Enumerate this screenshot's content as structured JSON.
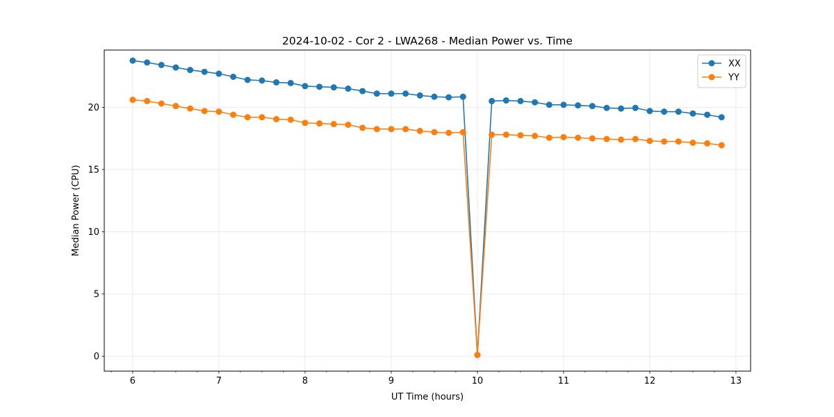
{
  "chart_data": {
    "type": "line",
    "title": "2024-10-02 - Cor 2 - LWA268 - Median Power vs. Time",
    "xlabel": "UT Time (hours)",
    "ylabel": "Median Power (CPU)",
    "xlim": [
      5.67,
      13.17
    ],
    "ylim": [
      -1.2,
      24.6
    ],
    "xticks": [
      6,
      7,
      8,
      9,
      10,
      11,
      12,
      13
    ],
    "xtick_labels": [
      "6",
      "7",
      "8",
      "9",
      "10",
      "11",
      "12",
      "13"
    ],
    "xminor_step": 0.25,
    "yticks": [
      0,
      5,
      10,
      15,
      20
    ],
    "ytick_labels": [
      "0",
      "5",
      "10",
      "15",
      "20"
    ],
    "grid": true,
    "legend_position": "top-right",
    "x": [
      6.0,
      6.1667,
      6.3333,
      6.5,
      6.6667,
      6.8333,
      7.0,
      7.1667,
      7.3333,
      7.5,
      7.6667,
      7.8333,
      8.0,
      8.1667,
      8.3333,
      8.5,
      8.6667,
      8.8333,
      9.0,
      9.1667,
      9.3333,
      9.5,
      9.6667,
      9.8333,
      10.0,
      10.1667,
      10.3333,
      10.5,
      10.6667,
      10.8333,
      11.0,
      11.1667,
      11.3333,
      11.5,
      11.6667,
      11.8333,
      12.0,
      12.1667,
      12.3333,
      12.5,
      12.6667,
      12.8333
    ],
    "series": [
      {
        "name": "XX",
        "color": "#1f77b4",
        "values": [
          23.75,
          23.6,
          23.4,
          23.2,
          23.0,
          22.85,
          22.7,
          22.45,
          22.2,
          22.15,
          22.0,
          21.95,
          21.7,
          21.65,
          21.6,
          21.5,
          21.3,
          21.1,
          21.1,
          21.1,
          20.95,
          20.85,
          20.8,
          20.85,
          0.1,
          20.5,
          20.55,
          20.5,
          20.4,
          20.2,
          20.2,
          20.15,
          20.1,
          19.95,
          19.9,
          19.95,
          19.7,
          19.65,
          19.65,
          19.5,
          19.4,
          19.2
        ]
      },
      {
        "name": "YY",
        "color": "#ff7f0e",
        "values": [
          20.6,
          20.5,
          20.3,
          20.1,
          19.9,
          19.7,
          19.65,
          19.4,
          19.2,
          19.2,
          19.05,
          19.0,
          18.75,
          18.7,
          18.65,
          18.6,
          18.35,
          18.25,
          18.25,
          18.25,
          18.1,
          18.0,
          17.95,
          18.0,
          0.1,
          17.8,
          17.8,
          17.75,
          17.7,
          17.55,
          17.6,
          17.55,
          17.5,
          17.45,
          17.4,
          17.45,
          17.3,
          17.25,
          17.25,
          17.15,
          17.1,
          16.95
        ]
      }
    ]
  }
}
